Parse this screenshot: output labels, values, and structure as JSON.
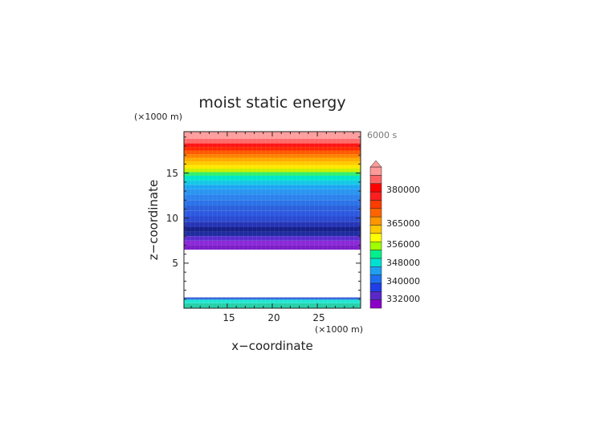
{
  "chart_data": {
    "type": "heatmap",
    "title": "moist static energy",
    "time_label": "6000 s",
    "xlabel": "x−coordinate",
    "ylabel": "z−coordinate",
    "x_unit": "(×1000 m)",
    "y_unit": "(×1000 m)",
    "xlim": [
      10.2,
      29.8
    ],
    "ylim": [
      0,
      19.6
    ],
    "x_ticks": [
      15,
      20,
      25
    ],
    "y_ticks": [
      5,
      10,
      15
    ],
    "x_tick_labels": [
      "15",
      "20",
      "25"
    ],
    "y_tick_labels": [
      "5",
      "10",
      "15"
    ],
    "colorbar": {
      "tick_labels": [
        "380000",
        "365000",
        "356000",
        "348000",
        "340000",
        "332000"
      ],
      "colors": [
        "#8a00c8",
        "#5a28c8",
        "#1f3ee8",
        "#1e6ef0",
        "#1ea0f0",
        "#00e0d0",
        "#00f08c",
        "#a0ff00",
        "#ffff00",
        "#ffc800",
        "#ff9600",
        "#ff6400",
        "#ff3c00",
        "#ff1e1e",
        "#ff0000",
        "#ff6464",
        "#ff9a9a"
      ]
    },
    "layers": [
      {
        "z": [
          0,
          0.55
        ],
        "color": "#25d0a8"
      },
      {
        "z": [
          0.55,
          0.95
        ],
        "color": "#20e6d0"
      },
      {
        "z": [
          0.95,
          1.1
        ],
        "color": "#2a6ee6"
      },
      {
        "z": [
          1.1,
          1.2
        ],
        "color": "#2248c8"
      },
      {
        "z": [
          1.2,
          6.5
        ],
        "color": "#ffffff"
      },
      {
        "z": [
          6.5,
          7.0
        ],
        "color": "#7d1ec8"
      },
      {
        "z": [
          7.0,
          7.5
        ],
        "color": "#8c28d8"
      },
      {
        "z": [
          7.5,
          8.0
        ],
        "color": "#5a2cd0"
      },
      {
        "z": [
          8.0,
          8.5
        ],
        "color": "#1e2ca0"
      },
      {
        "z": [
          8.5,
          9.0
        ],
        "color": "#16208a"
      },
      {
        "z": [
          9.0,
          9.6
        ],
        "color": "#2434b4"
      },
      {
        "z": [
          9.6,
          10.2
        ],
        "color": "#2a4ad2"
      },
      {
        "z": [
          10.2,
          10.8
        ],
        "color": "#2c58e0"
      },
      {
        "z": [
          10.8,
          11.4
        ],
        "color": "#2a60dc"
      },
      {
        "z": [
          11.4,
          12.0
        ],
        "color": "#2a72e8"
      },
      {
        "z": [
          12.0,
          12.6
        ],
        "color": "#2c82ee"
      },
      {
        "z": [
          12.6,
          13.2
        ],
        "color": "#2a94f0"
      },
      {
        "z": [
          13.2,
          13.7
        ],
        "color": "#1aa6f2"
      },
      {
        "z": [
          13.7,
          14.2
        ],
        "color": "#14c8e6"
      },
      {
        "z": [
          14.2,
          14.7
        ],
        "color": "#00e6c8"
      },
      {
        "z": [
          14.7,
          15.1
        ],
        "color": "#30f070"
      },
      {
        "z": [
          15.1,
          15.5
        ],
        "color": "#c8f000"
      },
      {
        "z": [
          15.5,
          15.9
        ],
        "color": "#ffe800"
      },
      {
        "z": [
          15.9,
          16.3
        ],
        "color": "#ffc800"
      },
      {
        "z": [
          16.3,
          16.7
        ],
        "color": "#ffaa00"
      },
      {
        "z": [
          16.7,
          17.1
        ],
        "color": "#ff8200"
      },
      {
        "z": [
          17.1,
          17.5
        ],
        "color": "#ff5a00"
      },
      {
        "z": [
          17.5,
          17.9
        ],
        "color": "#ff2800"
      },
      {
        "z": [
          17.9,
          18.3
        ],
        "color": "#ff1414"
      },
      {
        "z": [
          18.3,
          18.8
        ],
        "color": "#ff6a6a"
      },
      {
        "z": [
          18.8,
          19.6
        ],
        "color": "#ff9e9e"
      }
    ]
  }
}
